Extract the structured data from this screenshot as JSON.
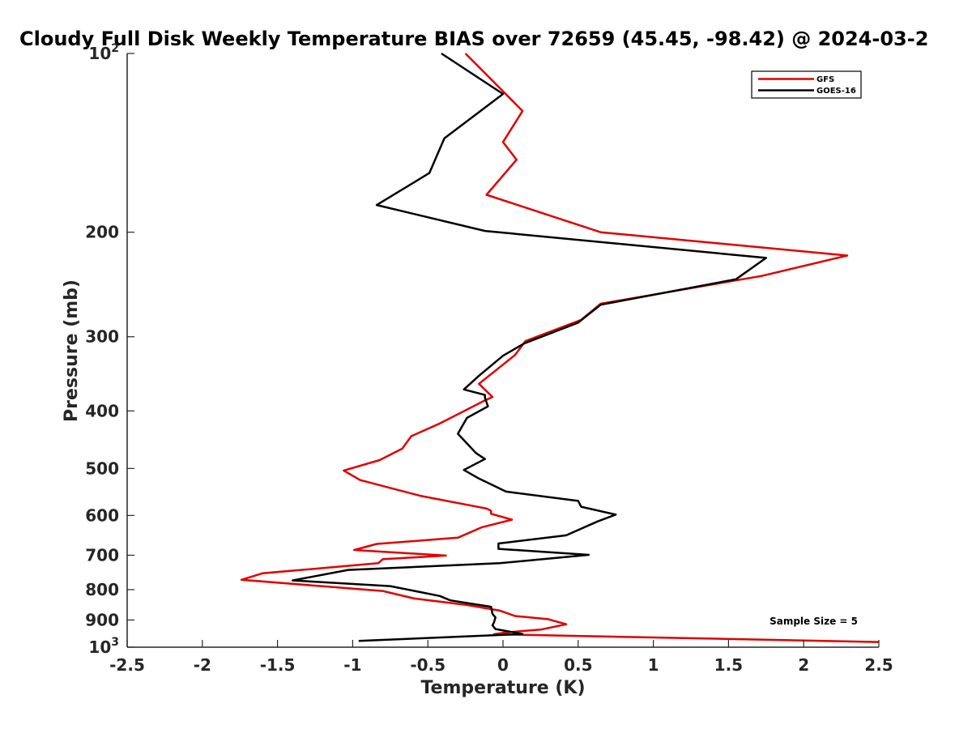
{
  "chart_data": {
    "type": "line",
    "title": "Cloudy Full Disk Weekly Temperature BIAS over 72659 (45.45, -98.42) @ 2024-03-2",
    "xlabel": "Temperature (K)",
    "ylabel": "Pressure (mb)",
    "xlim": [
      -2.5,
      2.5
    ],
    "ylim": [
      100,
      1000
    ],
    "y_scale": "log",
    "y_reversed": true,
    "x_ticks": [
      "-2.5",
      "-2",
      "-1.5",
      "-1",
      "-0.5",
      "0",
      "0.5",
      "1",
      "1.5",
      "2",
      "2.5"
    ],
    "x_tick_values": [
      -2.5,
      -2,
      -1.5,
      -1,
      -0.5,
      0,
      0.5,
      1,
      1.5,
      2,
      2.5
    ],
    "y_ticks": [
      {
        "value": 100,
        "label": "10",
        "exp": "2"
      },
      {
        "value": 200,
        "label": "200"
      },
      {
        "value": 300,
        "label": "300"
      },
      {
        "value": 400,
        "label": "400"
      },
      {
        "value": 500,
        "label": "500"
      },
      {
        "value": 600,
        "label": "600"
      },
      {
        "value": 700,
        "label": "700"
      },
      {
        "value": 800,
        "label": "800"
      },
      {
        "value": 900,
        "label": "900"
      },
      {
        "value": 1000,
        "label": "10",
        "exp": "3"
      }
    ],
    "grid": false,
    "legend_position": "top-right",
    "annotation": "Sample Size = 5",
    "series": [
      {
        "name": "GFS",
        "color": "#e00000",
        "points": [
          [
            -0.25,
            100
          ],
          [
            0.13,
            125
          ],
          [
            0.0,
            141
          ],
          [
            0.09,
            151
          ],
          [
            -0.11,
            173
          ],
          [
            0.65,
            200
          ],
          [
            2.29,
            219
          ],
          [
            1.72,
            237
          ],
          [
            0.65,
            264
          ],
          [
            0.52,
            281
          ],
          [
            0.15,
            305
          ],
          [
            0.08,
            322
          ],
          [
            -0.16,
            360
          ],
          [
            -0.07,
            379
          ],
          [
            -0.12,
            384
          ],
          [
            -0.42,
            420
          ],
          [
            -0.61,
            441
          ],
          [
            -0.67,
            463
          ],
          [
            -0.82,
            484
          ],
          [
            -1.06,
            504
          ],
          [
            -0.95,
            523
          ],
          [
            -0.55,
            556
          ],
          [
            -0.11,
            584
          ],
          [
            -0.08,
            589
          ],
          [
            -0.08,
            596
          ],
          [
            0.06,
            610
          ],
          [
            -0.14,
            628
          ],
          [
            -0.3,
            654
          ],
          [
            -0.84,
            670
          ],
          [
            -0.99,
            686
          ],
          [
            -0.38,
            701
          ],
          [
            -0.8,
            711
          ],
          [
            -0.83,
            722
          ],
          [
            -1.6,
            751
          ],
          [
            -1.74,
            770
          ],
          [
            -0.8,
            804
          ],
          [
            -0.59,
            828
          ],
          [
            -0.24,
            849
          ],
          [
            -0.02,
            868
          ],
          [
            0.08,
            886
          ],
          [
            0.3,
            897
          ],
          [
            0.42,
            915
          ],
          [
            0.25,
            934
          ],
          [
            0.07,
            942
          ],
          [
            0.0,
            946
          ],
          [
            -0.06,
            951
          ],
          [
            2.5,
            980
          ]
        ]
      },
      {
        "name": "GOES-16",
        "color": "#000000",
        "points": [
          [
            -0.41,
            100
          ],
          [
            0.0,
            117
          ],
          [
            -0.39,
            139
          ],
          [
            -0.49,
            159
          ],
          [
            -0.84,
            180
          ],
          [
            -0.12,
            199
          ],
          [
            1.75,
            221
          ],
          [
            1.55,
            240
          ],
          [
            0.65,
            265
          ],
          [
            0.5,
            284
          ],
          [
            0.14,
            308
          ],
          [
            0.0,
            323
          ],
          [
            -0.16,
            349
          ],
          [
            -0.26,
            368
          ],
          [
            -0.12,
            376
          ],
          [
            -0.12,
            380
          ],
          [
            -0.1,
            393
          ],
          [
            -0.24,
            411
          ],
          [
            -0.3,
            437
          ],
          [
            -0.18,
            471
          ],
          [
            -0.12,
            482
          ],
          [
            -0.26,
            503
          ],
          [
            -0.16,
            520
          ],
          [
            0.02,
            547
          ],
          [
            0.5,
            567
          ],
          [
            0.52,
            580
          ],
          [
            0.75,
            598
          ],
          [
            0.63,
            614
          ],
          [
            0.42,
            648
          ],
          [
            -0.03,
            669
          ],
          [
            -0.03,
            683
          ],
          [
            0.57,
            699
          ],
          [
            -0.02,
            722
          ],
          [
            -1.03,
            741
          ],
          [
            -1.4,
            772
          ],
          [
            -0.75,
            789
          ],
          [
            -0.42,
            820
          ],
          [
            -0.35,
            834
          ],
          [
            -0.08,
            855
          ],
          [
            -0.07,
            879
          ],
          [
            -0.05,
            891
          ],
          [
            -0.06,
            908
          ],
          [
            -0.07,
            919
          ],
          [
            -0.05,
            932
          ],
          [
            0.13,
            950
          ],
          [
            -0.96,
            976
          ]
        ]
      }
    ]
  }
}
